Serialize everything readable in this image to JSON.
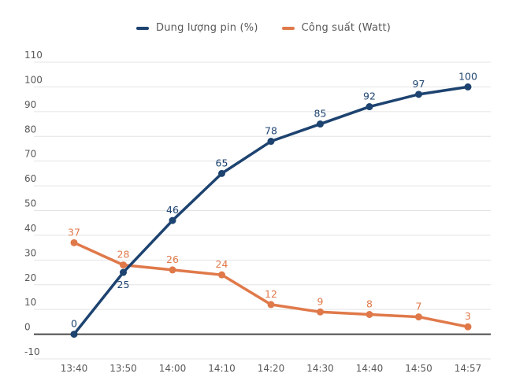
{
  "chart_data": {
    "type": "line",
    "categories": [
      "13:40",
      "13:50",
      "14:00",
      "14:10",
      "14:20",
      "14:30",
      "14:40",
      "14:50",
      "14:57"
    ],
    "series": [
      {
        "name": "Dung lượng pin (%)",
        "color": "#1d4370",
        "values": [
          0,
          25,
          46,
          65,
          78,
          85,
          92,
          97,
          100
        ],
        "label_below_indices": [
          1
        ]
      },
      {
        "name": "Công suất (Watt)",
        "color": "#e0794a",
        "values": [
          37,
          28,
          26,
          24,
          12,
          9,
          8,
          7,
          3
        ],
        "label_below_indices": []
      }
    ],
    "title": "",
    "xlabel": "",
    "ylabel": "",
    "ylim": [
      -10,
      110
    ],
    "ytick_step": 10,
    "grid": true,
    "legend_position": "top",
    "colors": {
      "grid_line": "#e4e4e4",
      "zero_line": "#4a4a4a",
      "tick_label": "#595959",
      "background": "#ffffff"
    }
  }
}
